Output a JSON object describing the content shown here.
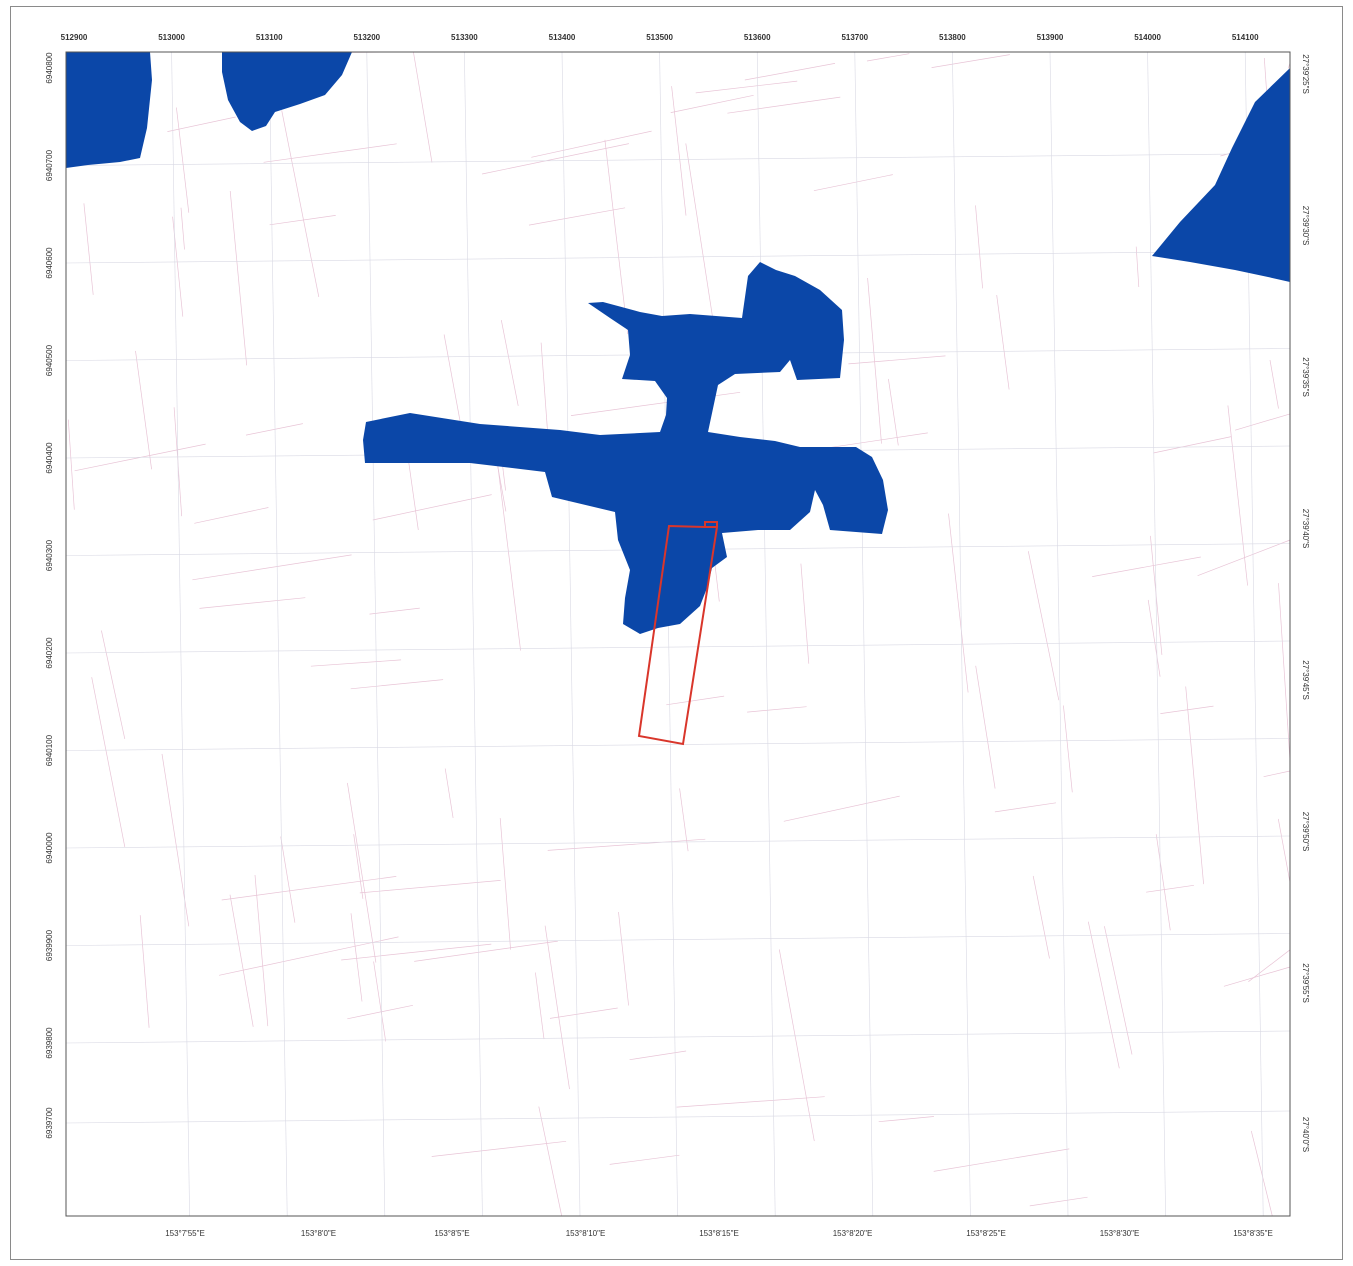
{
  "map": {
    "colors": {
      "water": "#0b47a8",
      "parcel_lines": "#e8c4d6",
      "grid": "#d9d9e4",
      "site_outline": "#d9362b",
      "frame": "#555555"
    },
    "top_ticks": [
      "512900",
      "513000",
      "513100",
      "513200",
      "513300",
      "513400",
      "513500",
      "513600",
      "513700",
      "513800",
      "513900",
      "514000",
      "514100"
    ],
    "left_ticks": [
      "6940800",
      "6940700",
      "6940600",
      "6940500",
      "6940400",
      "6940300",
      "6940200",
      "6940100",
      "6940000",
      "6939900",
      "6939800",
      "6939700"
    ],
    "right_ticks": [
      "27°39'25\"S",
      "27°39'30\"S",
      "27°39'35\"S",
      "27°39'40\"S",
      "27°39'45\"S",
      "27°39'50\"S",
      "27°39'55\"S",
      "27°40'0\"S"
    ],
    "bottom_ticks": [
      "153°7'55\"E",
      "153°8'0\"E",
      "153°8'5\"E",
      "153°8'10\"E",
      "153°8'15\"E",
      "153°8'20\"E",
      "153°8'25\"E",
      "153°8'30\"E",
      "153°8'35\"E"
    ],
    "features": [
      {
        "name": "water-area-northwest-1",
        "type": "water"
      },
      {
        "name": "water-area-northwest-2",
        "type": "water"
      },
      {
        "name": "water-area-northeast",
        "type": "water"
      },
      {
        "name": "water-area-central",
        "type": "water"
      },
      {
        "name": "site-boundary",
        "type": "site"
      }
    ]
  }
}
